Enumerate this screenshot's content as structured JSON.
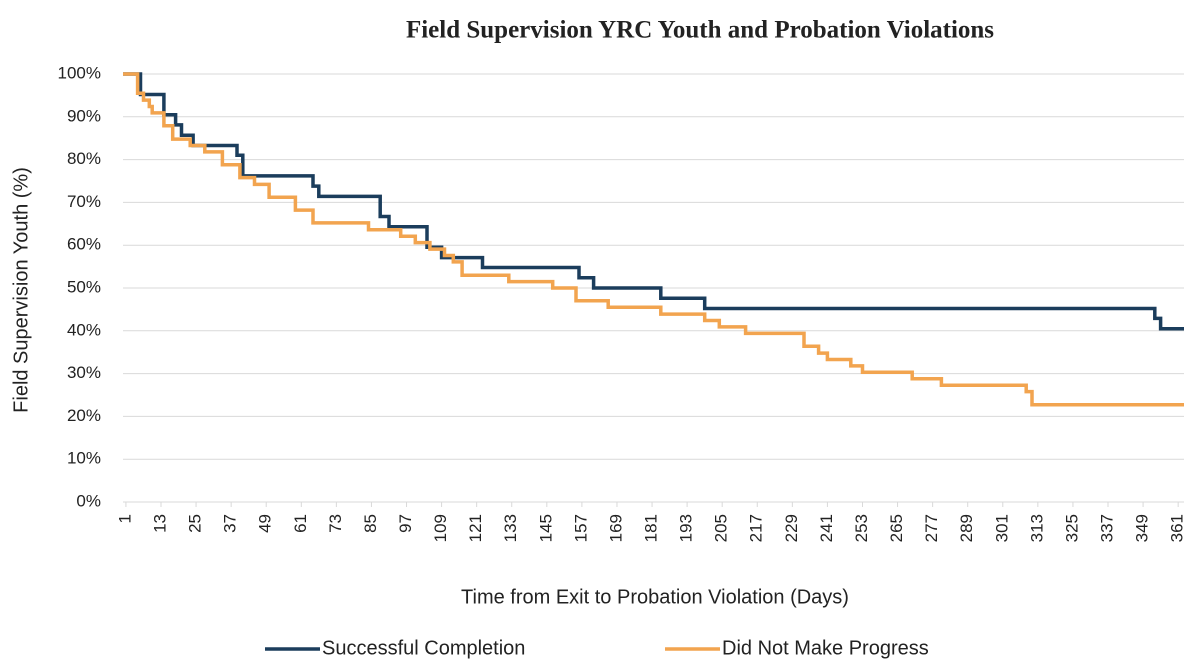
{
  "chart_data": {
    "type": "line",
    "step": true,
    "title": "Field Supervision YRC Youth and Probation Violations",
    "x_label": "Time from Exit to Probation Violation (Days)",
    "y_label": "Field Supervision Youth (%)",
    "xlim": [
      0,
      363
    ],
    "xticks": [
      1,
      13,
      25,
      37,
      49,
      61,
      73,
      85,
      97,
      109,
      121,
      133,
      145,
      157,
      169,
      181,
      193,
      205,
      217,
      229,
      241,
      253,
      265,
      277,
      289,
      301,
      313,
      325,
      337,
      349,
      361
    ],
    "ylim": [
      0,
      100
    ],
    "yticks": [
      {
        "value": 0,
        "label": "0%"
      },
      {
        "value": 10,
        "label": "10%"
      },
      {
        "value": 20,
        "label": "20%"
      },
      {
        "value": 30,
        "label": "30%"
      },
      {
        "value": 40,
        "label": "40%"
      },
      {
        "value": 50,
        "label": "50%"
      },
      {
        "value": 60,
        "label": "60%"
      },
      {
        "value": 70,
        "label": "70%"
      },
      {
        "value": 80,
        "label": "80%"
      },
      {
        "value": 90,
        "label": "90%"
      },
      {
        "value": 100,
        "label": "100%"
      }
    ],
    "grid": true,
    "legend": "bottom",
    "series": [
      {
        "name": "Successful Completion",
        "color": "#1b3d5c",
        "x": [
          0,
          6,
          14,
          18,
          20,
          24,
          39,
          41,
          65,
          67,
          88,
          91,
          104,
          109,
          123,
          156,
          161,
          184,
          199,
          353,
          355,
          363
        ],
        "values": [
          100,
          95.2,
          90.5,
          88.1,
          85.7,
          83.3,
          81,
          76.2,
          73.8,
          71.4,
          66.7,
          64.3,
          59.5,
          57.1,
          54.8,
          52.4,
          50,
          47.6,
          45.2,
          42.9,
          40.5,
          40.5
        ]
      },
      {
        "name": "Did Not Make Progress",
        "color": "#f2a44f",
        "x": [
          0,
          5,
          7,
          9,
          10,
          14,
          17,
          23,
          28,
          34,
          40,
          45,
          50,
          59,
          65,
          84,
          95,
          100,
          105,
          110,
          113,
          116,
          132,
          147,
          155,
          166,
          184,
          199,
          204,
          213,
          233,
          238,
          241,
          249,
          253,
          270,
          280,
          309,
          311,
          363
        ],
        "values": [
          100,
          95.5,
          93.9,
          92.4,
          90.9,
          87.9,
          84.8,
          83.3,
          81.8,
          78.8,
          75.8,
          74.2,
          71.2,
          68.2,
          65.2,
          63.6,
          62.1,
          60.6,
          59.1,
          57.6,
          56.1,
          53,
          51.5,
          50,
          47,
          45.5,
          43.9,
          42.4,
          40.9,
          39.4,
          36.4,
          34.8,
          33.3,
          31.8,
          30.3,
          28.8,
          27.3,
          25.8,
          22.7,
          22.7
        ]
      }
    ]
  }
}
